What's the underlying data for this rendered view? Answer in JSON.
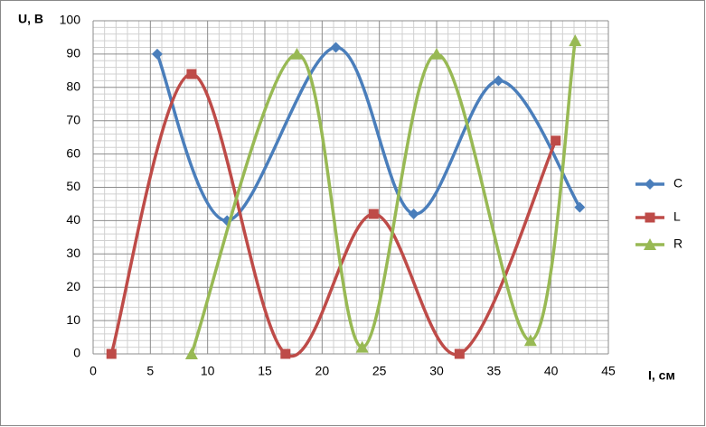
{
  "chart_data": {
    "type": "line",
    "smooth": true,
    "x_label": "I, см",
    "y_label": "U, В",
    "xlim": [
      0,
      45
    ],
    "xticks": [
      0,
      5,
      10,
      15,
      20,
      25,
      30,
      35,
      40,
      45
    ],
    "ylim": [
      0,
      100
    ],
    "yticks": [
      0,
      10,
      20,
      30,
      40,
      50,
      60,
      70,
      80,
      90,
      100
    ],
    "grid": true,
    "minor_grid": true,
    "legend": "right",
    "series": [
      {
        "name": "C",
        "color": "#4a7ebb",
        "marker": "diamond",
        "x": [
          5.6,
          11.7,
          21.2,
          28.0,
          35.4,
          42.5
        ],
        "values": [
          90,
          40,
          92,
          42,
          82,
          44
        ]
      },
      {
        "name": "L",
        "color": "#be4b48",
        "marker": "square",
        "x": [
          1.6,
          8.6,
          16.8,
          24.5,
          32.0,
          40.4
        ],
        "values": [
          0,
          84,
          0,
          42,
          0,
          64
        ]
      },
      {
        "name": "R",
        "color": "#98b954",
        "marker": "triangle",
        "x": [
          8.6,
          17.8,
          23.5,
          30.0,
          38.2,
          42.1
        ],
        "values": [
          0,
          90,
          2,
          90,
          4,
          94
        ]
      }
    ]
  }
}
